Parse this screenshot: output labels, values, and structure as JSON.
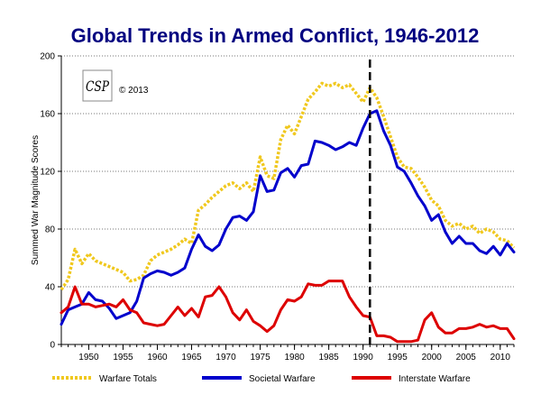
{
  "chart_data": {
    "type": "line",
    "title": "Global Trends in Armed Conflict, 1946-2012",
    "xlabel": "",
    "ylabel": "Summed War Magnitude Scores",
    "xlim": [
      1946,
      2012
    ],
    "ylim": [
      0,
      200
    ],
    "yticks": [
      0,
      40,
      80,
      120,
      160,
      200
    ],
    "xticks": [
      1950,
      1955,
      1960,
      1965,
      1970,
      1975,
      1980,
      1985,
      1990,
      1995,
      2000,
      2005,
      2010
    ],
    "grid": "horizontal dotted",
    "legend_position": "bottom",
    "annotation": {
      "type": "vertical-dashed-line",
      "x": 1991
    },
    "copyright": "© 2013",
    "logo_text": "CSP",
    "x": [
      1946,
      1947,
      1948,
      1949,
      1950,
      1951,
      1952,
      1953,
      1954,
      1955,
      1956,
      1957,
      1958,
      1959,
      1960,
      1961,
      1962,
      1963,
      1964,
      1965,
      1966,
      1967,
      1968,
      1969,
      1970,
      1971,
      1972,
      1973,
      1974,
      1975,
      1976,
      1977,
      1978,
      1979,
      1980,
      1981,
      1982,
      1983,
      1984,
      1985,
      1986,
      1987,
      1988,
      1989,
      1990,
      1991,
      1992,
      1993,
      1994,
      1995,
      1996,
      1997,
      1998,
      1999,
      2000,
      2001,
      2002,
      2003,
      2004,
      2005,
      2006,
      2007,
      2008,
      2009,
      2010,
      2011,
      2012
    ],
    "series": [
      {
        "name": "Warfare Totals",
        "color": "#f0c81e",
        "style": "dotted",
        "values": [
          38,
          45,
          66,
          56,
          63,
          58,
          56,
          54,
          52,
          50,
          44,
          45,
          48,
          58,
          62,
          64,
          66,
          69,
          73,
          70,
          93,
          97,
          102,
          106,
          110,
          112,
          108,
          112,
          106,
          130,
          117,
          115,
          142,
          152,
          146,
          158,
          170,
          175,
          181,
          179,
          181,
          178,
          180,
          174,
          168,
          178,
          171,
          158,
          144,
          130,
          123,
          122,
          116,
          109,
          100,
          96,
          86,
          82,
          84,
          80,
          82,
          77,
          80,
          78,
          73,
          72,
          67
        ]
      },
      {
        "name": "Societal Warfare",
        "color": "#0000cc",
        "style": "solid",
        "values": [
          14,
          24,
          26,
          28,
          36,
          31,
          30,
          25,
          18,
          20,
          22,
          30,
          46,
          49,
          51,
          50,
          48,
          50,
          53,
          66,
          76,
          68,
          65,
          69,
          80,
          88,
          89,
          86,
          92,
          117,
          106,
          107,
          119,
          122,
          116,
          124,
          125,
          141,
          140,
          138,
          135,
          137,
          140,
          138,
          150,
          160,
          162,
          148,
          138,
          123,
          120,
          112,
          103,
          96,
          86,
          90,
          78,
          70,
          75,
          70,
          70,
          65,
          63,
          68,
          62,
          70,
          64
        ]
      },
      {
        "name": "Interstate Warfare",
        "color": "#dd0000",
        "style": "solid",
        "values": [
          22,
          26,
          40,
          28,
          28,
          26,
          27,
          28,
          26,
          31,
          24,
          22,
          15,
          14,
          13,
          14,
          20,
          26,
          20,
          25,
          19,
          33,
          34,
          40,
          33,
          22,
          17,
          24,
          16,
          13,
          9,
          13,
          24,
          31,
          30,
          33,
          42,
          41,
          41,
          44,
          44,
          44,
          33,
          26,
          20,
          19,
          6,
          6,
          5,
          2,
          2,
          2,
          3,
          17,
          22,
          12,
          8,
          8,
          11,
          11,
          12,
          14,
          12,
          13,
          11,
          11,
          4
        ]
      }
    ]
  }
}
